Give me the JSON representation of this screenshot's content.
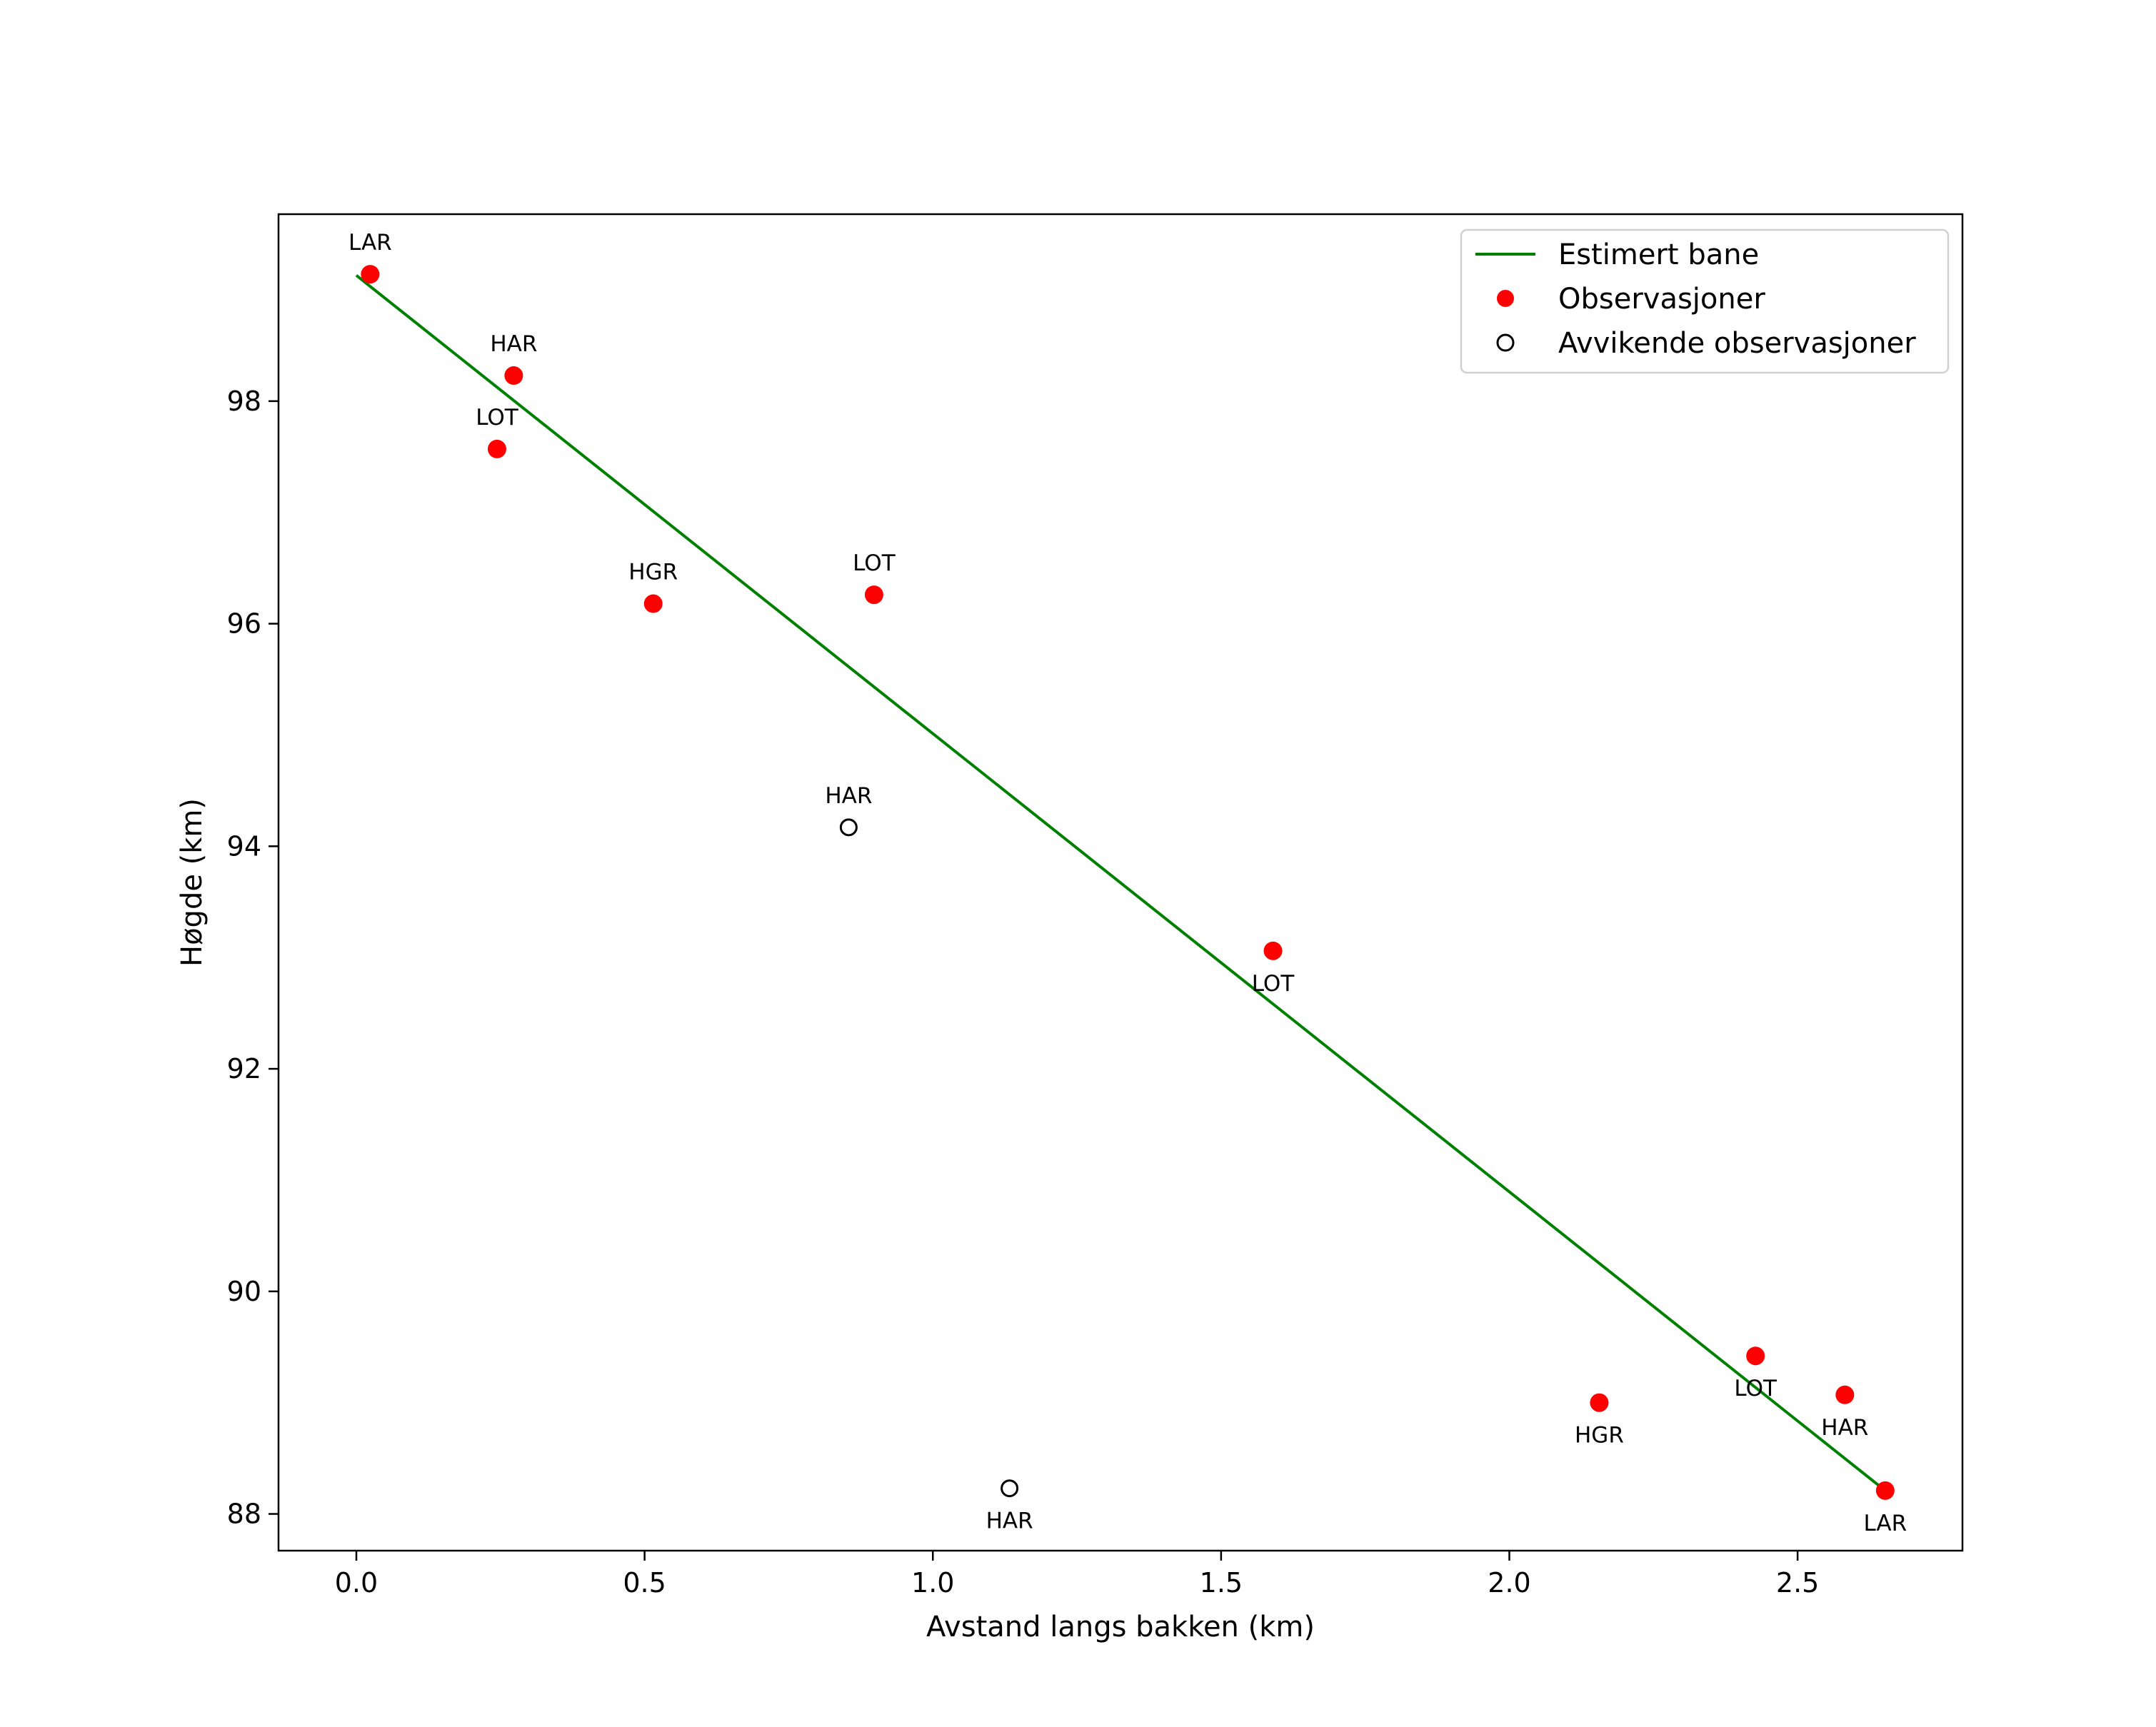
{
  "chart_data": {
    "type": "scatter",
    "title": "",
    "xlabel": "Avstand langs bakken (km)",
    "ylabel": "Høgde (km)",
    "xlim": [
      -0.135,
      2.786
    ],
    "ylim": [
      87.67,
      99.68
    ],
    "xticks": [
      0.0,
      0.5,
      1.0,
      1.5,
      2.0,
      2.5
    ],
    "xtick_labels": [
      "0.0",
      "0.5",
      "1.0",
      "1.5",
      "2.0",
      "2.5"
    ],
    "yticks": [
      88,
      90,
      92,
      94,
      96,
      98
    ],
    "ytick_labels": [
      "88",
      "90",
      "92",
      "94",
      "96",
      "98"
    ],
    "grid": false,
    "legend_position": "top-right",
    "legend": [
      "Estimert bane",
      "Observasjoner",
      "Avvikende observasjoner"
    ],
    "colors": {
      "line": "#008000",
      "obs": "#ff0000",
      "outlier": "#000000"
    },
    "line": {
      "name": "Estimert bane",
      "x": [
        0.0,
        2.652
      ],
      "y": [
        99.13,
        88.21
      ]
    },
    "observations": [
      {
        "x": 0.024,
        "y": 99.14,
        "label": "LAR",
        "pos": "above"
      },
      {
        "x": 0.273,
        "y": 98.23,
        "label": "HAR",
        "pos": "above"
      },
      {
        "x": 0.244,
        "y": 97.57,
        "label": "LOT",
        "pos": "above"
      },
      {
        "x": 0.515,
        "y": 96.18,
        "label": "HGR",
        "pos": "above"
      },
      {
        "x": 0.898,
        "y": 96.26,
        "label": "LOT",
        "pos": "above"
      },
      {
        "x": 1.59,
        "y": 93.06,
        "label": "LOT",
        "pos": "below"
      },
      {
        "x": 2.156,
        "y": 89.0,
        "label": "HGR",
        "pos": "below"
      },
      {
        "x": 2.427,
        "y": 89.42,
        "label": "LOT",
        "pos": "below"
      },
      {
        "x": 2.582,
        "y": 89.07,
        "label": "HAR",
        "pos": "below"
      },
      {
        "x": 2.652,
        "y": 88.21,
        "label": "LAR",
        "pos": "below"
      }
    ],
    "outliers": [
      {
        "x": 0.854,
        "y": 94.17,
        "label": "HAR",
        "pos": "above"
      },
      {
        "x": 1.133,
        "y": 88.23,
        "label": "HAR",
        "pos": "below"
      }
    ]
  }
}
